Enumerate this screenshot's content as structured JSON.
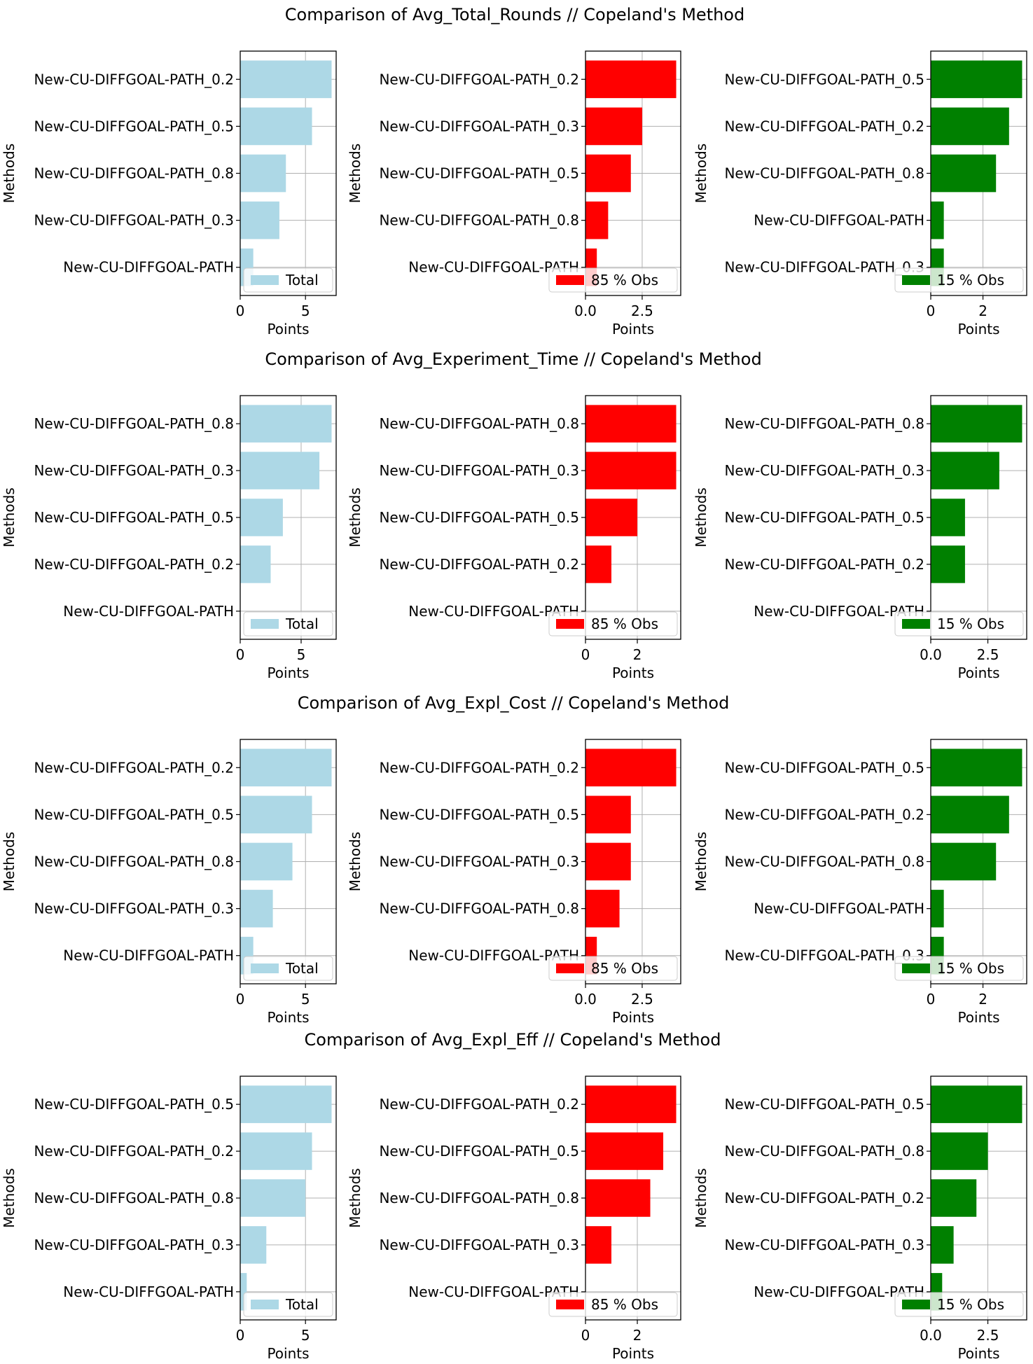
{
  "figure": {
    "titles": [
      "Comparison of Avg_Total_Rounds // Copeland's Method",
      "Comparison of Avg_Experiment_Time // Copeland's Method",
      "Comparison of Avg_Expl_Cost // Copeland's Method",
      "Comparison of Avg_Expl_Eff // Copeland's Method"
    ],
    "xlabel": "Points",
    "ylabel": "Methods",
    "colors": {
      "total": "#add8e6",
      "obs85": "#ff0000",
      "obs15": "#008000",
      "grid": "#b0b0b0"
    }
  },
  "chart_data": [
    {
      "type": "bar",
      "orientation": "horizontal",
      "group": 0,
      "legend": "Total",
      "color": "#add8e6",
      "categories": [
        "New-CU-DIFFGOAL-PATH_0.2",
        "New-CU-DIFFGOAL-PATH_0.5",
        "New-CU-DIFFGOAL-PATH_0.8",
        "New-CU-DIFFGOAL-PATH_0.3",
        "New-CU-DIFFGOAL-PATH"
      ],
      "values": [
        7,
        5.5,
        3.5,
        3,
        1
      ],
      "xlim": [
        0,
        7.35
      ],
      "xticks": [
        0,
        5
      ],
      "tick_labels": [
        "0",
        "5"
      ],
      "xlabel": "Points",
      "ylabel": "Methods",
      "grid": true,
      "legend_position": "lower-right"
    },
    {
      "type": "bar",
      "orientation": "horizontal",
      "group": 0,
      "legend": "85 % Obs",
      "color": "#ff0000",
      "categories": [
        "New-CU-DIFFGOAL-PATH_0.2",
        "New-CU-DIFFGOAL-PATH_0.3",
        "New-CU-DIFFGOAL-PATH_0.5",
        "New-CU-DIFFGOAL-PATH_0.8",
        "New-CU-DIFFGOAL-PATH"
      ],
      "values": [
        4,
        2.5,
        2,
        1,
        0.5
      ],
      "xlim": [
        0,
        4.2
      ],
      "xticks": [
        0,
        2.5
      ],
      "tick_labels": [
        "0.0",
        "2.5"
      ],
      "xlabel": "Points",
      "ylabel": "Methods",
      "grid": true,
      "legend_position": "lower-right"
    },
    {
      "type": "bar",
      "orientation": "horizontal",
      "group": 0,
      "legend": "15 % Obs",
      "color": "#008000",
      "categories": [
        "New-CU-DIFFGOAL-PATH_0.5",
        "New-CU-DIFFGOAL-PATH_0.2",
        "New-CU-DIFFGOAL-PATH_0.8",
        "New-CU-DIFFGOAL-PATH",
        "New-CU-DIFFGOAL-PATH_0.3"
      ],
      "values": [
        3.5,
        3,
        2.5,
        0.5,
        0.5
      ],
      "xlim": [
        0,
        3.675
      ],
      "xticks": [
        0,
        2
      ],
      "tick_labels": [
        "0",
        "2"
      ],
      "xlabel": "Points",
      "ylabel": "Methods",
      "grid": true,
      "legend_position": "lower-right"
    },
    {
      "type": "bar",
      "orientation": "horizontal",
      "group": 1,
      "legend": "Total",
      "color": "#add8e6",
      "categories": [
        "New-CU-DIFFGOAL-PATH_0.8",
        "New-CU-DIFFGOAL-PATH_0.3",
        "New-CU-DIFFGOAL-PATH_0.5",
        "New-CU-DIFFGOAL-PATH_0.2",
        "New-CU-DIFFGOAL-PATH"
      ],
      "values": [
        7.5,
        6.5,
        3.5,
        2.5,
        0
      ],
      "xlim": [
        0,
        7.875
      ],
      "xticks": [
        0,
        5
      ],
      "tick_labels": [
        "0",
        "5"
      ],
      "xlabel": "Points",
      "ylabel": "Methods",
      "grid": true,
      "legend_position": "lower-right"
    },
    {
      "type": "bar",
      "orientation": "horizontal",
      "group": 1,
      "legend": "85 % Obs",
      "color": "#ff0000",
      "categories": [
        "New-CU-DIFFGOAL-PATH_0.8",
        "New-CU-DIFFGOAL-PATH_0.3",
        "New-CU-DIFFGOAL-PATH_0.5",
        "New-CU-DIFFGOAL-PATH_0.2",
        "New-CU-DIFFGOAL-PATH"
      ],
      "values": [
        3.5,
        3.5,
        2,
        1,
        0
      ],
      "xlim": [
        0,
        3.675
      ],
      "xticks": [
        0,
        2
      ],
      "tick_labels": [
        "0",
        "2"
      ],
      "xlabel": "Points",
      "ylabel": "Methods",
      "grid": true,
      "legend_position": "lower-right"
    },
    {
      "type": "bar",
      "orientation": "horizontal",
      "group": 1,
      "legend": "15 % Obs",
      "color": "#008000",
      "categories": [
        "New-CU-DIFFGOAL-PATH_0.8",
        "New-CU-DIFFGOAL-PATH_0.3",
        "New-CU-DIFFGOAL-PATH_0.5",
        "New-CU-DIFFGOAL-PATH_0.2",
        "New-CU-DIFFGOAL-PATH"
      ],
      "values": [
        4,
        3,
        1.5,
        1.5,
        0
      ],
      "xlim": [
        0,
        4.2
      ],
      "xticks": [
        0,
        2.5
      ],
      "tick_labels": [
        "0.0",
        "2.5"
      ],
      "xlabel": "Points",
      "ylabel": "Methods",
      "grid": true,
      "legend_position": "lower-right"
    },
    {
      "type": "bar",
      "orientation": "horizontal",
      "group": 2,
      "legend": "Total",
      "color": "#add8e6",
      "categories": [
        "New-CU-DIFFGOAL-PATH_0.2",
        "New-CU-DIFFGOAL-PATH_0.5",
        "New-CU-DIFFGOAL-PATH_0.8",
        "New-CU-DIFFGOAL-PATH_0.3",
        "New-CU-DIFFGOAL-PATH"
      ],
      "values": [
        7,
        5.5,
        4,
        2.5,
        1
      ],
      "xlim": [
        0,
        7.35
      ],
      "xticks": [
        0,
        5
      ],
      "tick_labels": [
        "0",
        "5"
      ],
      "xlabel": "Points",
      "ylabel": "Methods",
      "grid": true,
      "legend_position": "lower-right"
    },
    {
      "type": "bar",
      "orientation": "horizontal",
      "group": 2,
      "legend": "85 % Obs",
      "color": "#ff0000",
      "categories": [
        "New-CU-DIFFGOAL-PATH_0.2",
        "New-CU-DIFFGOAL-PATH_0.5",
        "New-CU-DIFFGOAL-PATH_0.3",
        "New-CU-DIFFGOAL-PATH_0.8",
        "New-CU-DIFFGOAL-PATH"
      ],
      "values": [
        4,
        2,
        2,
        1.5,
        0.5
      ],
      "xlim": [
        0,
        4.2
      ],
      "xticks": [
        0,
        2.5
      ],
      "tick_labels": [
        "0.0",
        "2.5"
      ],
      "xlabel": "Points",
      "ylabel": "Methods",
      "grid": true,
      "legend_position": "lower-right"
    },
    {
      "type": "bar",
      "orientation": "horizontal",
      "group": 2,
      "legend": "15 % Obs",
      "color": "#008000",
      "categories": [
        "New-CU-DIFFGOAL-PATH_0.5",
        "New-CU-DIFFGOAL-PATH_0.2",
        "New-CU-DIFFGOAL-PATH_0.8",
        "New-CU-DIFFGOAL-PATH",
        "New-CU-DIFFGOAL-PATH_0.3"
      ],
      "values": [
        3.5,
        3,
        2.5,
        0.5,
        0.5
      ],
      "xlim": [
        0,
        3.675
      ],
      "xticks": [
        0,
        2
      ],
      "tick_labels": [
        "0",
        "2"
      ],
      "xlabel": "Points",
      "ylabel": "Methods",
      "grid": true,
      "legend_position": "lower-right"
    },
    {
      "type": "bar",
      "orientation": "horizontal",
      "group": 3,
      "legend": "Total",
      "color": "#add8e6",
      "categories": [
        "New-CU-DIFFGOAL-PATH_0.5",
        "New-CU-DIFFGOAL-PATH_0.2",
        "New-CU-DIFFGOAL-PATH_0.8",
        "New-CU-DIFFGOAL-PATH_0.3",
        "New-CU-DIFFGOAL-PATH"
      ],
      "values": [
        7,
        5.5,
        5,
        2,
        0.5
      ],
      "xlim": [
        0,
        7.35
      ],
      "xticks": [
        0,
        5
      ],
      "tick_labels": [
        "0",
        "5"
      ],
      "xlabel": "Points",
      "ylabel": "Methods",
      "grid": true,
      "legend_position": "lower-right"
    },
    {
      "type": "bar",
      "orientation": "horizontal",
      "group": 3,
      "legend": "85 % Obs",
      "color": "#ff0000",
      "categories": [
        "New-CU-DIFFGOAL-PATH_0.2",
        "New-CU-DIFFGOAL-PATH_0.5",
        "New-CU-DIFFGOAL-PATH_0.8",
        "New-CU-DIFFGOAL-PATH_0.3",
        "New-CU-DIFFGOAL-PATH"
      ],
      "values": [
        3.5,
        3,
        2.5,
        1,
        0
      ],
      "xlim": [
        0,
        3.675
      ],
      "xticks": [
        0,
        2
      ],
      "tick_labels": [
        "0",
        "2"
      ],
      "xlabel": "Points",
      "ylabel": "Methods",
      "grid": true,
      "legend_position": "lower-right"
    },
    {
      "type": "bar",
      "orientation": "horizontal",
      "group": 3,
      "legend": "15 % Obs",
      "color": "#008000",
      "categories": [
        "New-CU-DIFFGOAL-PATH_0.5",
        "New-CU-DIFFGOAL-PATH_0.8",
        "New-CU-DIFFGOAL-PATH_0.2",
        "New-CU-DIFFGOAL-PATH_0.3",
        "New-CU-DIFFGOAL-PATH"
      ],
      "values": [
        4,
        2.5,
        2,
        1,
        0.5
      ],
      "xlim": [
        0,
        4.2
      ],
      "xticks": [
        0,
        2.5
      ],
      "tick_labels": [
        "0.0",
        "2.5"
      ],
      "xlabel": "Points",
      "ylabel": "Methods",
      "grid": true,
      "legend_position": "lower-right"
    }
  ]
}
